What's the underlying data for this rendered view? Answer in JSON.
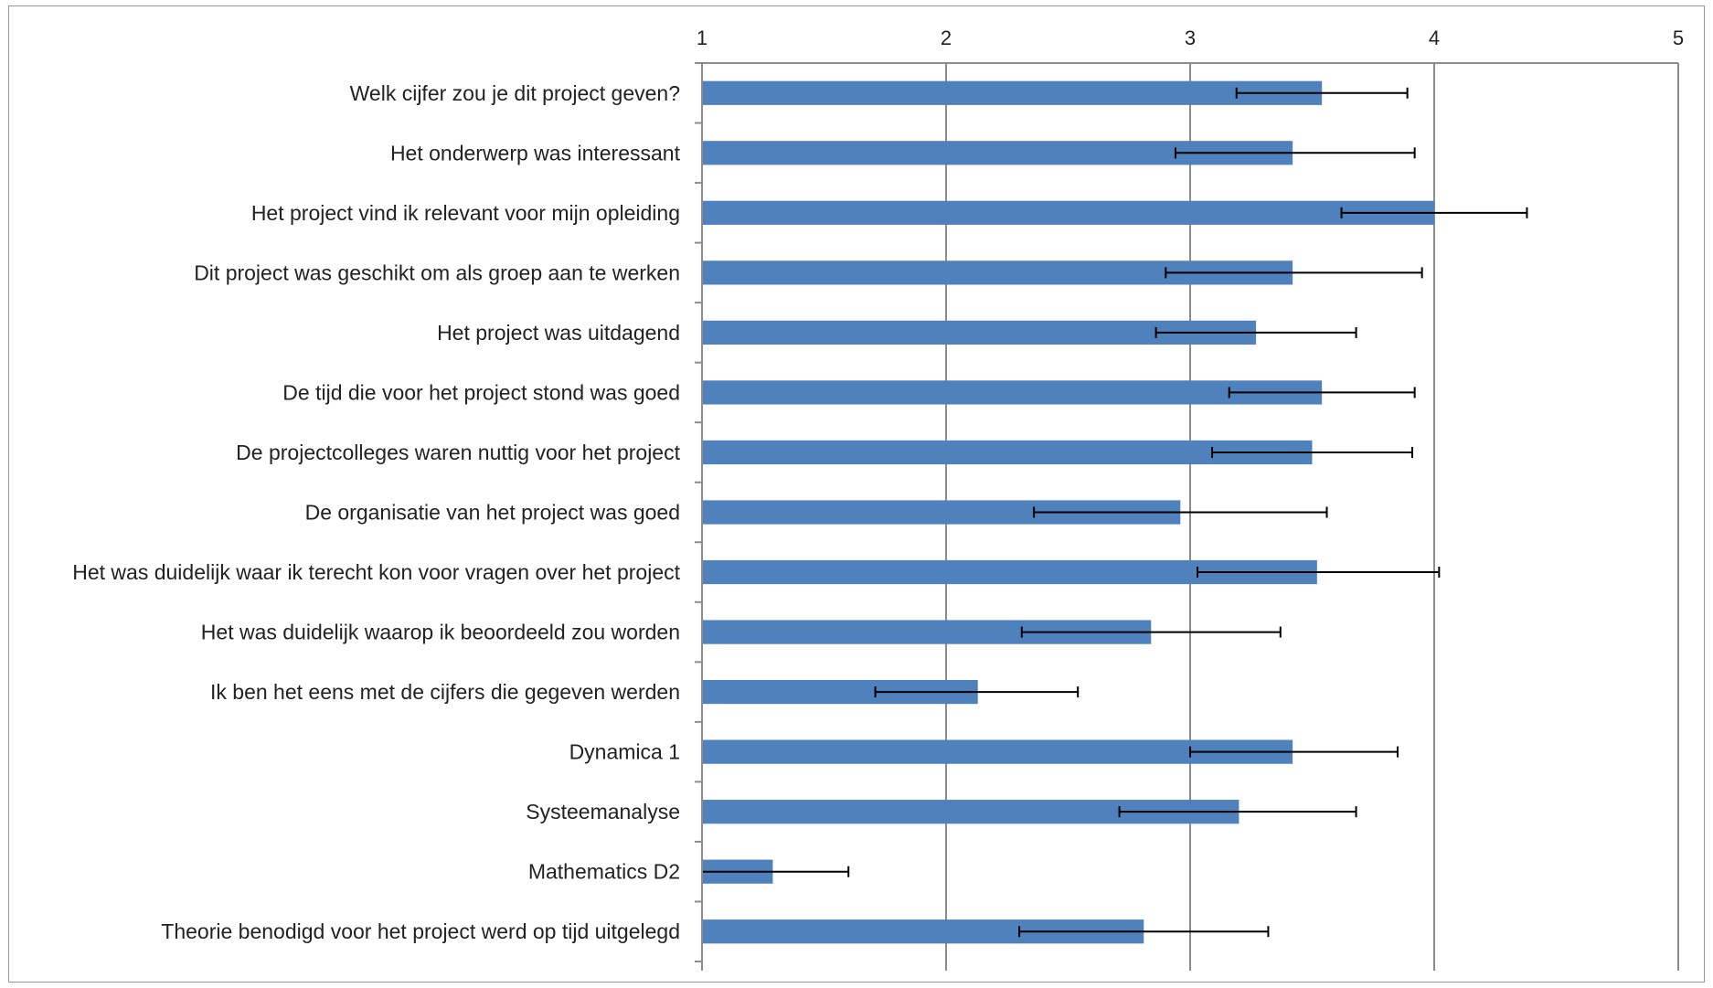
{
  "chart_data": {
    "type": "bar",
    "orientation": "horizontal",
    "title": "",
    "xlabel": "",
    "ylabel": "",
    "xlim": [
      1,
      5
    ],
    "x_ticks": [
      "1",
      "2",
      "3",
      "4",
      "5"
    ],
    "x_axis_position": "top",
    "grid": true,
    "legend": "none",
    "colors": {
      "bar": "#4F81BD",
      "grid": "#8c8c8c",
      "error_bar": "#000000"
    },
    "categories": [
      "Welk cijfer zou je dit project geven?",
      "Het onderwerp was interessant",
      "Het project vind ik relevant voor mijn opleiding",
      "Dit project was geschikt om als groep aan te werken",
      "Het project was uitdagend",
      "De tijd die voor het project stond was goed",
      "De projectcolleges waren nuttig voor het project",
      "De organisatie van het project was goed",
      "Het was duidelijk waar ik terecht kon voor vragen over het project",
      "Het was duidelijk waarop ik beoordeeld zou worden",
      "Ik ben het eens met de cijfers die gegeven werden",
      "Dynamica 1",
      "Systeemanalyse",
      "Mathematics D2",
      "Theorie benodigd voor het project werd op tijd uitgelegd"
    ],
    "values": [
      3.54,
      3.42,
      4.0,
      3.42,
      3.27,
      3.54,
      3.5,
      2.96,
      3.52,
      2.84,
      2.13,
      3.42,
      3.2,
      1.29,
      2.81
    ],
    "error_low": [
      3.19,
      2.94,
      3.62,
      2.9,
      2.86,
      3.16,
      3.09,
      2.36,
      3.03,
      2.31,
      1.71,
      3.0,
      2.71,
      1.0,
      2.3
    ],
    "error_high": [
      3.89,
      3.92,
      4.38,
      3.95,
      3.68,
      3.92,
      3.91,
      3.56,
      4.02,
      3.37,
      2.54,
      3.85,
      3.68,
      1.6,
      3.32
    ]
  }
}
